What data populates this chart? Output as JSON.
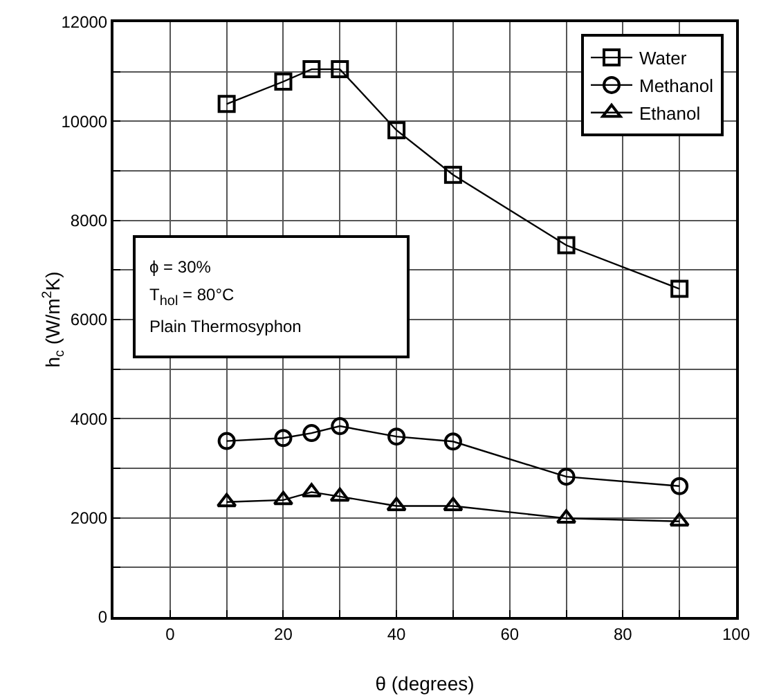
{
  "chart_data": {
    "type": "line",
    "xlabel": "θ (degrees)",
    "ylabel": "h$_{c}$ (W/m$^{2}$K)",
    "x": [
      10,
      20,
      25,
      30,
      40,
      50,
      70,
      90
    ],
    "series": [
      {
        "name": "Water",
        "color": "#000000",
        "marker": "square",
        "values": [
          10350,
          10800,
          11050,
          11050,
          9820,
          8920,
          7500,
          6620
        ]
      },
      {
        "name": "Methanol",
        "color": "#000000",
        "marker": "circle",
        "values": [
          3550,
          3610,
          3710,
          3850,
          3640,
          3540,
          2830,
          2640
        ]
      },
      {
        "name": "Ethanol",
        "color": "#000000",
        "marker": "triangle",
        "values": [
          2320,
          2360,
          2520,
          2430,
          2240,
          2240,
          1990,
          1930
        ]
      }
    ],
    "xlim": [
      -10,
      100
    ],
    "xticks": [
      0,
      {
        "value": 10,
        "label": null
      },
      20,
      {
        "value": 30,
        "label": null
      },
      40,
      {
        "value": 50,
        "label": null
      },
      60,
      {
        "value": 70,
        "label": null
      },
      80,
      {
        "value": 90,
        "label": null
      },
      100
    ],
    "ylim": [
      0,
      12000
    ],
    "yticks": [
      0,
      {
        "value": 1000,
        "label": null
      },
      2000,
      {
        "value": 3000,
        "label": null
      },
      4000,
      {
        "value": 5000,
        "label": null
      },
      6000,
      {
        "value": 7000,
        "label": null
      },
      8000,
      {
        "value": 9000,
        "label": null
      },
      10000,
      {
        "value": 11000,
        "label": null
      },
      12000
    ],
    "annotations": [
      "ϕ = 30%",
      "T$_{hol}$ = 80°C",
      "Plain Thermosyphon"
    ],
    "grid": true,
    "legend": "top right",
    "line_style": "solid"
  }
}
